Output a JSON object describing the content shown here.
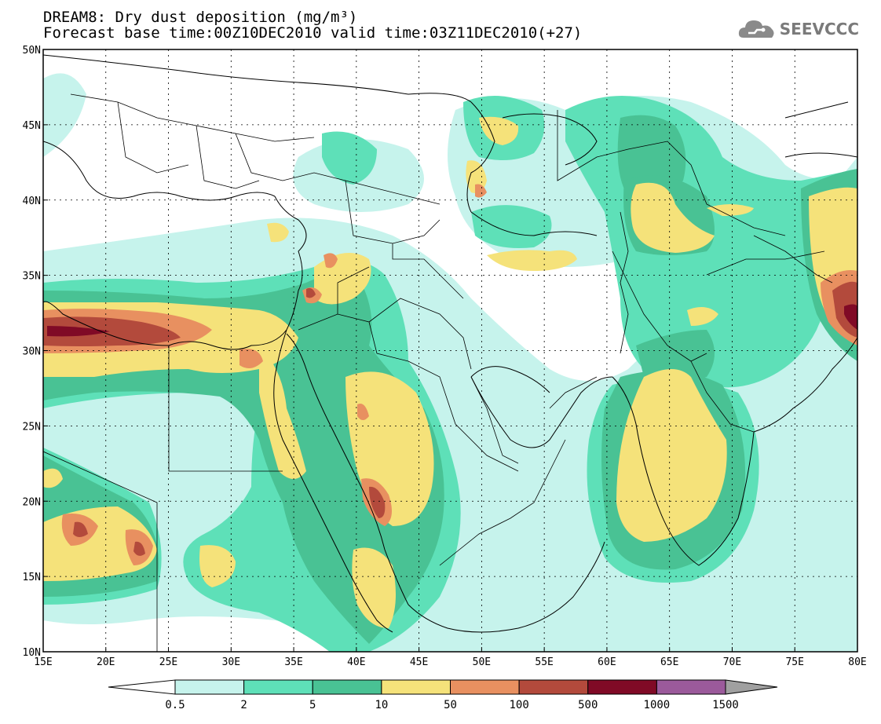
{
  "header": {
    "title": "DREAM8: Dry dust deposition (mg/m³)",
    "subtitle": "Forecast base time:00Z10DEC2010 valid time:03Z11DEC2010(+27)",
    "logo_text": "SEEVCCC"
  },
  "map": {
    "lon_range": [
      15,
      80
    ],
    "lat_range": [
      10,
      50
    ],
    "lon_ticks": [
      "15E",
      "20E",
      "25E",
      "30E",
      "35E",
      "40E",
      "45E",
      "50E",
      "55E",
      "60E",
      "65E",
      "70E",
      "75E",
      "80E"
    ],
    "lat_ticks": [
      "10N",
      "15N",
      "20N",
      "25N",
      "30N",
      "35N",
      "40N",
      "45N",
      "50N"
    ]
  },
  "legend": {
    "labels": [
      "0.5",
      "2",
      "5",
      "10",
      "50",
      "100",
      "500",
      "1000",
      "1500"
    ],
    "colors": [
      "#ffffff",
      "#c6f3ec",
      "#5ee0b8",
      "#49c294",
      "#f5e27a",
      "#e89060",
      "#b34a3c",
      "#800a26",
      "#9b5a9b",
      "#a0a0a0"
    ]
  },
  "colors": {
    "c1": "#c6f3ec",
    "c2": "#5ee0b8",
    "c3": "#49c294",
    "c4": "#f5e27a",
    "c5": "#e89060",
    "c6": "#b34a3c",
    "c7": "#800a26"
  }
}
